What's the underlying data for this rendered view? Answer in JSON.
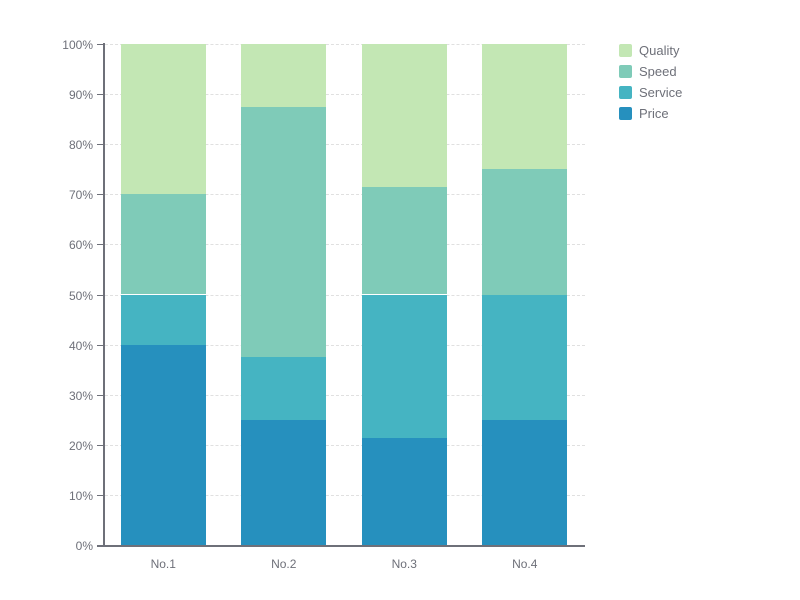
{
  "chart_data": {
    "type": "bar",
    "stacked": true,
    "percentage": true,
    "title": "",
    "categories": [
      "No.1",
      "No.2",
      "No.3",
      "No.4"
    ],
    "series": [
      {
        "name": "Price",
        "color": "#2690be",
        "values": [
          40,
          25,
          21.4,
          25
        ]
      },
      {
        "name": "Service",
        "color": "#45b4c2",
        "values": [
          10,
          12.5,
          28.6,
          25
        ]
      },
      {
        "name": "Speed",
        "color": "#7fcbb8",
        "values": [
          20,
          50,
          21.4,
          25
        ]
      },
      {
        "name": "Quality",
        "color": "#c3e7b4",
        "values": [
          30,
          12.5,
          28.6,
          25
        ]
      }
    ],
    "legend": {
      "position": "top-right",
      "items": [
        "Quality",
        "Speed",
        "Service",
        "Price"
      ]
    },
    "y_axis": {
      "min": 0,
      "max": 100,
      "tick_step": 10,
      "ticks": [
        "0%",
        "10%",
        "20%",
        "30%",
        "40%",
        "50%",
        "60%",
        "70%",
        "80%",
        "90%",
        "100%"
      ],
      "grid": "dashed"
    },
    "x_axis": {
      "labels": [
        "No.1",
        "No.2",
        "No.3",
        "No.4"
      ]
    }
  },
  "colors": {
    "background": "#ffffff",
    "axis": "#6e7079",
    "label": "#6e7079",
    "grid": "#e0e0e0"
  }
}
